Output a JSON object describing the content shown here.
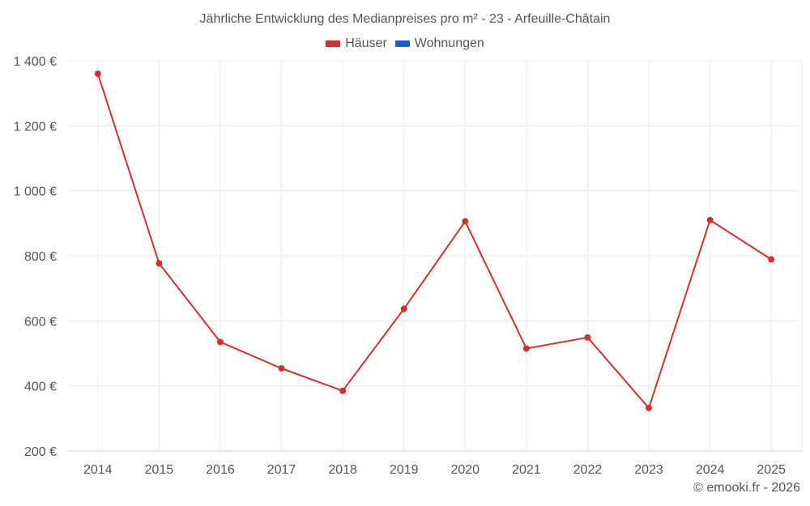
{
  "chart_data": {
    "type": "line",
    "title": "Jährliche Entwicklung des Medianpreises pro m² - 23 - Arfeuille-Châtain",
    "categories": [
      "2014",
      "2015",
      "2016",
      "2017",
      "2018",
      "2019",
      "2020",
      "2021",
      "2022",
      "2023",
      "2024",
      "2025"
    ],
    "series": [
      {
        "name": "Häuser",
        "color": "#d32f2f",
        "values": [
          1360,
          777,
          535,
          454,
          385,
          637,
          906,
          515,
          549,
          332,
          910,
          789
        ]
      },
      {
        "name": "Wohnungen",
        "color": "#1565c0",
        "values": [
          null,
          null,
          null,
          null,
          null,
          null,
          null,
          null,
          null,
          null,
          null,
          null
        ]
      }
    ],
    "ylim": [
      200,
      1400
    ],
    "yticks": [
      200,
      400,
      600,
      800,
      1000,
      1200,
      1400
    ],
    "ytick_labels": [
      "200 €",
      "400 €",
      "600 €",
      "800 €",
      "1 000 €",
      "1 200 €",
      "1 400 €"
    ],
    "xlabel": "",
    "ylabel": "",
    "grid": true,
    "legend": "top-center"
  },
  "credit": "© emooki.fr - 2026"
}
